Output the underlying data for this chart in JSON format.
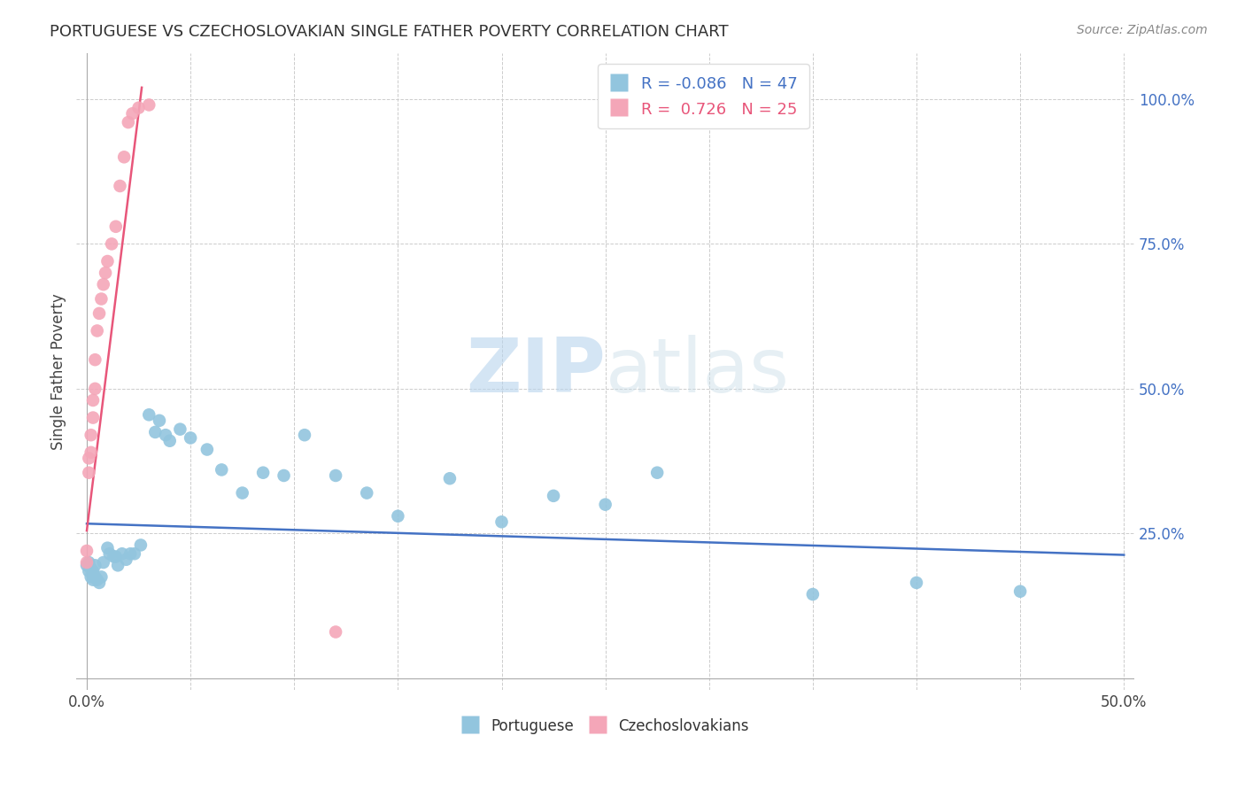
{
  "title": "PORTUGUESE VS CZECHOSLOVAKIAN SINGLE FATHER POVERTY CORRELATION CHART",
  "source": "Source: ZipAtlas.com",
  "ylabel": "Single Father Poverty",
  "watermark_zip": "ZIP",
  "watermark_atlas": "atlas",
  "legend_blue_R": "-0.086",
  "legend_blue_N": "47",
  "legend_pink_R": "0.726",
  "legend_pink_N": "25",
  "blue_color": "#92c5de",
  "pink_color": "#f4a6b8",
  "blue_line_color": "#4472c4",
  "pink_line_color": "#e8567a",
  "blue_text_color": "#4472c4",
  "pink_text_color": "#e8567a",
  "grid_color": "#cccccc",
  "port_x": [
    0.0,
    0.001,
    0.001,
    0.002,
    0.002,
    0.003,
    0.003,
    0.004,
    0.004,
    0.005,
    0.006,
    0.007,
    0.008,
    0.01,
    0.011,
    0.013,
    0.014,
    0.015,
    0.017,
    0.019,
    0.021,
    0.023,
    0.026,
    0.03,
    0.033,
    0.035,
    0.038,
    0.04,
    0.045,
    0.05,
    0.058,
    0.065,
    0.075,
    0.085,
    0.095,
    0.105,
    0.12,
    0.135,
    0.15,
    0.175,
    0.2,
    0.225,
    0.25,
    0.275,
    0.35,
    0.4,
    0.45
  ],
  "port_y": [
    0.195,
    0.2,
    0.185,
    0.19,
    0.175,
    0.185,
    0.17,
    0.195,
    0.175,
    0.17,
    0.165,
    0.175,
    0.2,
    0.225,
    0.215,
    0.21,
    0.21,
    0.195,
    0.215,
    0.205,
    0.215,
    0.215,
    0.23,
    0.455,
    0.425,
    0.445,
    0.42,
    0.41,
    0.43,
    0.415,
    0.395,
    0.36,
    0.32,
    0.355,
    0.35,
    0.42,
    0.35,
    0.32,
    0.28,
    0.345,
    0.27,
    0.315,
    0.3,
    0.355,
    0.145,
    0.165,
    0.15
  ],
  "czech_x": [
    0.0,
    0.0,
    0.001,
    0.001,
    0.002,
    0.002,
    0.003,
    0.003,
    0.004,
    0.004,
    0.005,
    0.006,
    0.007,
    0.008,
    0.009,
    0.01,
    0.012,
    0.014,
    0.016,
    0.018,
    0.02,
    0.022,
    0.025,
    0.03,
    0.12
  ],
  "czech_y": [
    0.2,
    0.22,
    0.355,
    0.38,
    0.39,
    0.42,
    0.45,
    0.48,
    0.5,
    0.55,
    0.6,
    0.63,
    0.655,
    0.68,
    0.7,
    0.72,
    0.75,
    0.78,
    0.85,
    0.9,
    0.96,
    0.975,
    0.985,
    0.99,
    0.08
  ],
  "blue_line_x": [
    0.0,
    0.5
  ],
  "blue_line_y": [
    0.267,
    0.213
  ],
  "pink_line_x": [
    0.0,
    0.0265
  ],
  "pink_line_y": [
    0.255,
    1.02
  ],
  "xlim": [
    -0.005,
    0.505
  ],
  "ylim": [
    -0.02,
    1.08
  ],
  "yticks": [
    0.25,
    0.5,
    0.75,
    1.0
  ],
  "ytick_labels": [
    "25.0%",
    "50.0%",
    "75.0%",
    "100.0%"
  ]
}
